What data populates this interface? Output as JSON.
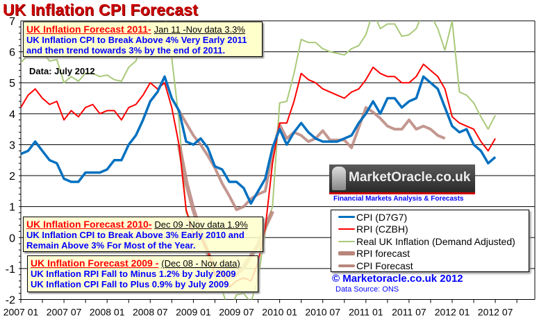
{
  "title": "UK Inflation CPI Forecast",
  "annotations": {
    "box2011": {
      "heading": "UK Inflation  Forecast  2011-",
      "detail": "Jan 11 -Nov data 3.3%",
      "line1": "UK Inflation CPI to Break Above 4% Very Early 2011",
      "line2": "and then trend towards 3% by the end of 2011."
    },
    "box2010": {
      "heading": "UK Inflation  Forecast  2010-",
      "detail": "Dec 09 -Nov data 1.9%",
      "line1": "UK Inflation CPI to Break Above 3% Early 2010 and",
      "line2": "Remain Above 3% For Most of the Year."
    },
    "box2009": {
      "heading": "UK Inflation  Forecast  2009 -",
      "detail": "(Dec 08 - Nov data)",
      "line1": "UK Inflation RPI Fall to  Minus 1.2% by July 2009",
      "line2": "UK Inflation CPI Fall to Plus 0.9% by July 2009"
    },
    "data_note": "Data:  July 2012"
  },
  "logo": {
    "text": "MarketOracle.co.uk",
    "tagline": "Financial Markets Analysis & Forecasts"
  },
  "copyright": "© Marketoracle.co.uk  2012",
  "source": "Data Source: ONS",
  "chart_data": {
    "type": "line",
    "title": "UK Inflation CPI Forecast",
    "xlabel": "",
    "ylabel": "",
    "ylim": [
      -2,
      7
    ],
    "yticks": [
      "-2",
      "-1",
      "0",
      "1",
      "2",
      "3",
      "4",
      "5",
      "6",
      "7"
    ],
    "xticks": [
      "2007 01",
      "2007 07",
      "2008 01",
      "2008 07",
      "2009 01",
      "2009 07",
      "2010 01",
      "2010 07",
      "2011 01",
      "2011 07",
      "2012 01",
      "2012 07"
    ],
    "x_start": "2007 01",
    "x_frequency": "monthly",
    "grid": "horizontal",
    "legend_position": "bottom-right",
    "series": [
      {
        "name": "CPI (D7G7)",
        "color": "#0070c0",
        "start": "2007 01",
        "values": [
          2.7,
          2.8,
          3.1,
          2.8,
          2.5,
          2.4,
          1.9,
          1.8,
          1.8,
          2.1,
          2.1,
          2.1,
          2.2,
          2.5,
          2.5,
          3.0,
          3.3,
          3.8,
          4.4,
          4.7,
          5.2,
          4.5,
          4.1,
          3.1,
          3.0,
          3.2,
          2.9,
          2.3,
          2.2,
          1.8,
          1.8,
          1.6,
          1.1,
          1.5,
          1.9,
          2.9,
          3.5,
          3.0,
          3.4,
          3.7,
          3.4,
          3.2,
          3.1,
          3.1,
          3.1,
          3.2,
          3.3,
          3.7,
          4.0,
          4.4,
          4.0,
          4.5,
          4.5,
          4.2,
          4.4,
          4.5,
          5.2,
          5.0,
          4.8,
          4.2,
          3.6,
          3.4,
          3.5,
          3.0,
          2.8,
          2.4,
          2.6
        ]
      },
      {
        "name": "RPI (CZBH)",
        "color": "#ff0000",
        "start": "2007 01",
        "values": [
          4.2,
          4.6,
          4.8,
          4.5,
          4.3,
          4.4,
          3.8,
          4.1,
          3.9,
          4.2,
          4.3,
          4.0,
          4.1,
          4.1,
          3.8,
          4.2,
          4.3,
          4.6,
          5.0,
          4.8,
          5.0,
          4.2,
          3.0,
          0.9,
          0.1,
          0.0,
          -0.4,
          -1.2,
          -1.1,
          -1.6,
          -1.4,
          -1.3,
          -1.4,
          -0.8,
          0.3,
          2.4,
          3.7,
          3.7,
          4.4,
          5.3,
          5.1,
          5.0,
          4.8,
          4.7,
          4.6,
          4.5,
          4.7,
          4.8,
          5.1,
          5.5,
          5.3,
          5.2,
          5.2,
          5.0,
          5.0,
          5.2,
          5.6,
          5.4,
          5.2,
          4.8,
          3.9,
          3.7,
          3.6,
          3.5,
          3.1,
          2.8,
          3.2
        ]
      },
      {
        "name": "Real UK Inflation  (Demand Adjusted)",
        "color": "#a9c97a",
        "start": "2007 01",
        "values": [
          5.65,
          5.9,
          6.0,
          6.0,
          5.7,
          5.75,
          5.0,
          5.2,
          5.05,
          5.3,
          5.3,
          5.2,
          5.25,
          5.1,
          5.05,
          5.5,
          5.7,
          6.3,
          7.3,
          7.3,
          7.3,
          5.8,
          3.8,
          0.8,
          0.5,
          0.0,
          -0.6,
          -1.3,
          -1.7,
          -2.4,
          -1.85,
          -1.8,
          -2.1,
          -1.3,
          0.2,
          1.0,
          4.35,
          4.4,
          5.3,
          6.4,
          6.3,
          6.3,
          6.1,
          6.0,
          5.95,
          5.9,
          6.1,
          6.2,
          6.55,
          7.3,
          6.75,
          6.9,
          6.9,
          6.5,
          6.55,
          6.75,
          7.3,
          7.2,
          6.75,
          6.05,
          7.0,
          4.7,
          4.6,
          4.35,
          3.9,
          3.5,
          3.95
        ]
      },
      {
        "name": "RPI forecast",
        "color": "#b8857c",
        "start": "2008 11",
        "values": [
          3.0,
          1.8,
          0.9,
          0.2,
          -0.5,
          -0.9,
          -1.15,
          -1.25,
          -1.2,
          -0.95,
          -0.6,
          -0.25,
          0.35,
          0.85
        ]
      },
      {
        "name": "CPI Forecast",
        "color": "#b8857c",
        "start": "2008 11",
        "values": [
          4.1,
          3.7,
          3.3,
          3.0,
          2.65,
          2.25,
          1.75,
          1.35,
          0.9,
          1.0,
          1.25,
          1.4,
          1.5,
          2.75,
          3.65,
          3.2,
          3.4,
          3.3,
          3.1,
          3.2,
          3.45,
          3.15,
          3.15,
          3.15,
          2.9,
          3.55,
          4.2,
          4.05,
          3.85,
          3.6,
          3.5,
          3.5,
          3.8,
          3.5,
          3.6,
          3.5,
          3.3,
          3.2
        ]
      }
    ]
  }
}
